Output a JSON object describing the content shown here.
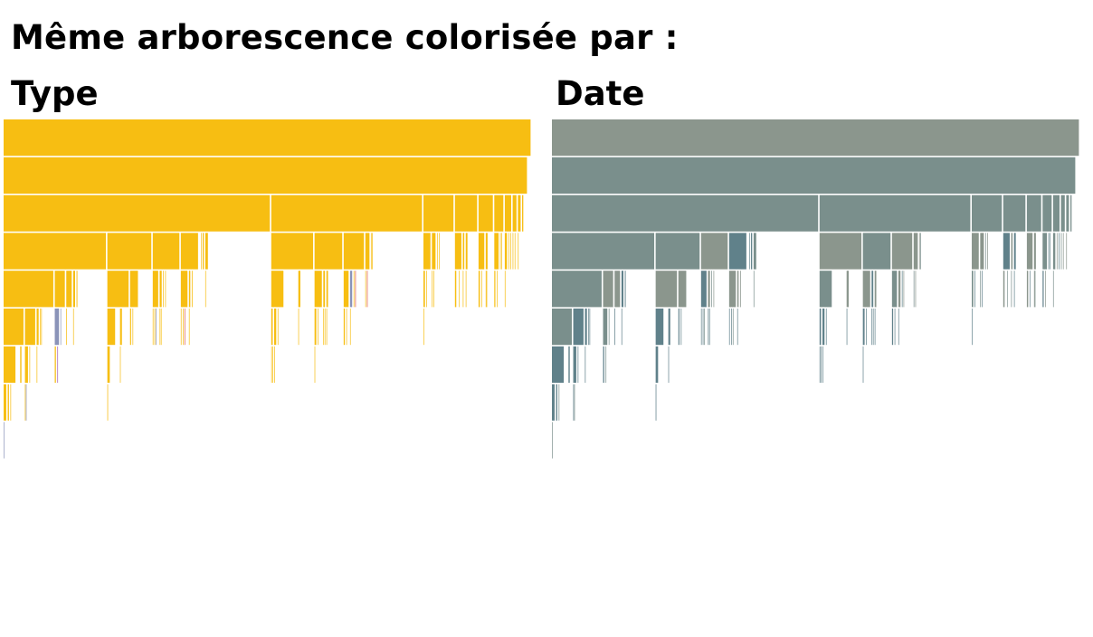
{
  "title": "Même arborescence colorisée par :",
  "panels": [
    {
      "id": "type",
      "label": "Type"
    },
    {
      "id": "date",
      "label": "Date"
    }
  ],
  "colors": {
    "type_main": "#f7be12",
    "type_accent_red": "#e0584a",
    "type_accent_blue": "#8a93b8",
    "type_accent_purple": "#9b59b6",
    "date_old": "#8b968d",
    "date_mid": "#7a8f8c",
    "date_recent": "#60818a",
    "separator": "#ffffff"
  }
}
